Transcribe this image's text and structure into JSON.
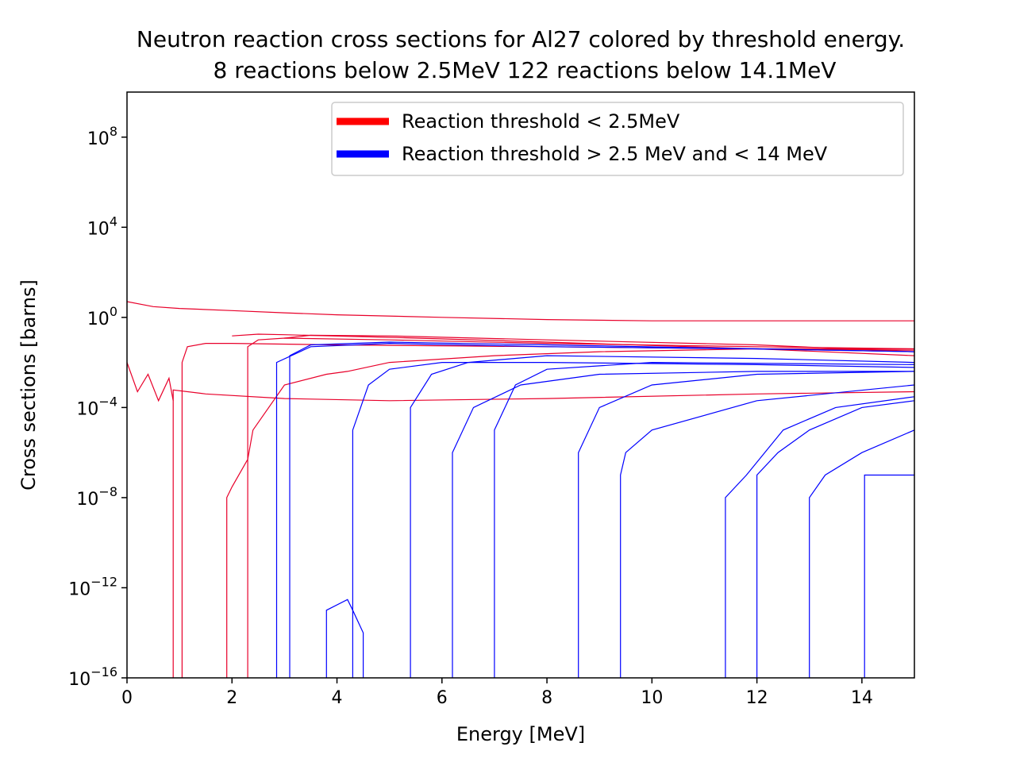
{
  "chart_data": {
    "type": "line",
    "title": "Neutron reaction cross sections for Al27 colored by threshold energy.",
    "subtitle": "8 reactions below 2.5MeV 122 reactions below 14.1MeV",
    "xlabel": "Energy [MeV]",
    "ylabel": "Cross sections [barns]",
    "xlim": [
      0,
      15
    ],
    "ylim": [
      1e-16,
      10000000000.0
    ],
    "yscale": "log",
    "grid": false,
    "legend_position": "top-right",
    "x_ticks": [
      {
        "value": 0,
        "label": "0"
      },
      {
        "value": 2,
        "label": "2"
      },
      {
        "value": 4,
        "label": "4"
      },
      {
        "value": 6,
        "label": "6"
      },
      {
        "value": 8,
        "label": "8"
      },
      {
        "value": 10,
        "label": "10"
      },
      {
        "value": 12,
        "label": "12"
      },
      {
        "value": 14,
        "label": "14"
      }
    ],
    "y_ticks": [
      {
        "value": 1e-16,
        "base": "10",
        "exp": "−16"
      },
      {
        "value": 1e-12,
        "base": "10",
        "exp": "−12"
      },
      {
        "value": 1e-08,
        "base": "10",
        "exp": "−8"
      },
      {
        "value": 0.0001,
        "base": "10",
        "exp": "−4"
      },
      {
        "value": 1,
        "base": "10",
        "exp": "0"
      },
      {
        "value": 10000.0,
        "base": "10",
        "exp": "4"
      },
      {
        "value": 100000000.0,
        "base": "10",
        "exp": "8"
      }
    ],
    "legend": [
      {
        "label": "Reaction threshold < 2.5MeV",
        "color": "#ff0000"
      },
      {
        "label": "Reaction threshold > 2.5 MeV and < 14 MeV",
        "color": "#0000ff"
      }
    ],
    "series_groups": [
      {
        "color": "#e8002a",
        "series": [
          {
            "x": [
              0.0,
              0.5,
              1.0,
              2.0,
              3.0,
              4.0,
              6.0,
              8.0,
              10.0,
              12.0,
              14.0,
              15.0
            ],
            "y": [
              5.0,
              3.0,
              2.5,
              2.0,
              1.6,
              1.3,
              1.0,
              0.8,
              0.7,
              0.7,
              0.7,
              0.7
            ]
          },
          {
            "x": [
              0.0,
              0.2,
              0.4,
              0.6,
              0.8,
              0.88
            ],
            "y": [
              0.01,
              0.0005,
              0.003,
              0.0002,
              0.002,
              0.0002
            ]
          },
          {
            "x": [
              0.88,
              0.88,
              1.5,
              3.0,
              5.0,
              8.0,
              12.0,
              15.0
            ],
            "y": [
              1e-16,
              0.0006,
              0.0004,
              0.00025,
              0.0002,
              0.00025,
              0.0004,
              0.0005
            ]
          },
          {
            "x": [
              1.05,
              1.05,
              1.15,
              1.5,
              2.0,
              4.0,
              8.0,
              12.0,
              15.0
            ],
            "y": [
              1e-16,
              0.01,
              0.05,
              0.07,
              0.07,
              0.06,
              0.05,
              0.04,
              0.035
            ]
          },
          {
            "x": [
              1.9,
              1.9,
              2.0,
              2.3,
              2.4,
              3.0,
              3.8,
              4.2,
              5.0,
              7.0,
              9.0,
              12.0,
              15.0
            ],
            "y": [
              1e-16,
              1e-08,
              3e-08,
              5e-07,
              1e-05,
              0.001,
              0.003,
              0.004,
              0.01,
              0.02,
              0.03,
              0.04,
              0.04
            ]
          },
          {
            "x": [
              2.3,
              2.3,
              2.5,
              3.0,
              5.0,
              8.0,
              12.0,
              15.0
            ],
            "y": [
              1e-16,
              0.05,
              0.1,
              0.12,
              0.1,
              0.07,
              0.05,
              0.04
            ]
          },
          {
            "x": [
              2.0,
              2.5,
              3.0,
              5.0,
              8.0,
              12.0,
              15.0
            ],
            "y": [
              0.15,
              0.18,
              0.17,
              0.13,
              0.08,
              0.04,
              0.02
            ]
          },
          {
            "x": [
              3.0,
              3.5,
              5.0,
              8.0,
              12.0,
              15.0
            ],
            "y": [
              0.12,
              0.16,
              0.15,
              0.1,
              0.06,
              0.03
            ]
          }
        ]
      },
      {
        "color": "#0000ff",
        "series": [
          {
            "x": [
              2.85,
              2.85,
              3.5,
              5.0,
              8.0,
              12.0,
              15.0
            ],
            "y": [
              1e-16,
              0.01,
              0.05,
              0.07,
              0.05,
              0.04,
              0.03
            ]
          },
          {
            "x": [
              3.1,
              3.1,
              3.5,
              5.0,
              8.0,
              12.0,
              15.0
            ],
            "y": [
              1e-16,
              0.02,
              0.06,
              0.08,
              0.06,
              0.04,
              0.03
            ]
          },
          {
            "x": [
              3.8,
              3.8,
              4.2,
              4.3,
              4.5,
              4.5
            ],
            "y": [
              1e-16,
              1e-13,
              3e-13,
              1e-13,
              1e-14,
              1e-16
            ]
          },
          {
            "x": [
              4.3,
              4.3,
              4.6,
              5.0,
              6.0,
              8.0,
              12.0,
              15.0
            ],
            "y": [
              1e-16,
              1e-05,
              0.001,
              0.005,
              0.01,
              0.01,
              0.008,
              0.006
            ]
          },
          {
            "x": [
              5.4,
              5.4,
              5.8,
              6.5,
              8.0,
              12.0,
              15.0
            ],
            "y": [
              1e-16,
              0.0001,
              0.003,
              0.01,
              0.02,
              0.015,
              0.01
            ]
          },
          {
            "x": [
              6.2,
              6.2,
              6.6,
              7.5,
              9.0,
              12.0,
              15.0
            ],
            "y": [
              1e-16,
              1e-06,
              0.0001,
              0.001,
              0.003,
              0.004,
              0.004
            ]
          },
          {
            "x": [
              7.0,
              7.0,
              7.4,
              8.0,
              10.0,
              15.0
            ],
            "y": [
              1e-16,
              1e-05,
              0.001,
              0.005,
              0.01,
              0.008
            ]
          },
          {
            "x": [
              8.6,
              8.6,
              9.0,
              10.0,
              12.0,
              15.0
            ],
            "y": [
              1e-16,
              1e-06,
              0.0001,
              0.001,
              0.003,
              0.004
            ]
          },
          {
            "x": [
              9.4,
              9.4,
              9.5,
              10.0,
              12.0,
              15.0
            ],
            "y": [
              1e-16,
              1e-07,
              1e-06,
              1e-05,
              0.0002,
              0.001
            ]
          },
          {
            "x": [
              11.4,
              11.4,
              11.8,
              12.5,
              13.5,
              15.0
            ],
            "y": [
              1e-16,
              1e-08,
              1e-07,
              1e-05,
              0.0001,
              0.0003
            ]
          },
          {
            "x": [
              12.0,
              12.0,
              12.4,
              13.0,
              14.0,
              15.0
            ],
            "y": [
              1e-16,
              1e-07,
              1e-06,
              1e-05,
              0.0001,
              0.0002
            ]
          },
          {
            "x": [
              13.0,
              13.0,
              13.3,
              14.0,
              15.0
            ],
            "y": [
              1e-16,
              1e-08,
              1e-07,
              1e-06,
              1e-05
            ]
          },
          {
            "x": [
              14.05,
              14.05,
              14.5,
              15.0
            ],
            "y": [
              1e-16,
              1e-07,
              1e-07,
              1e-07
            ]
          }
        ]
      }
    ]
  }
}
